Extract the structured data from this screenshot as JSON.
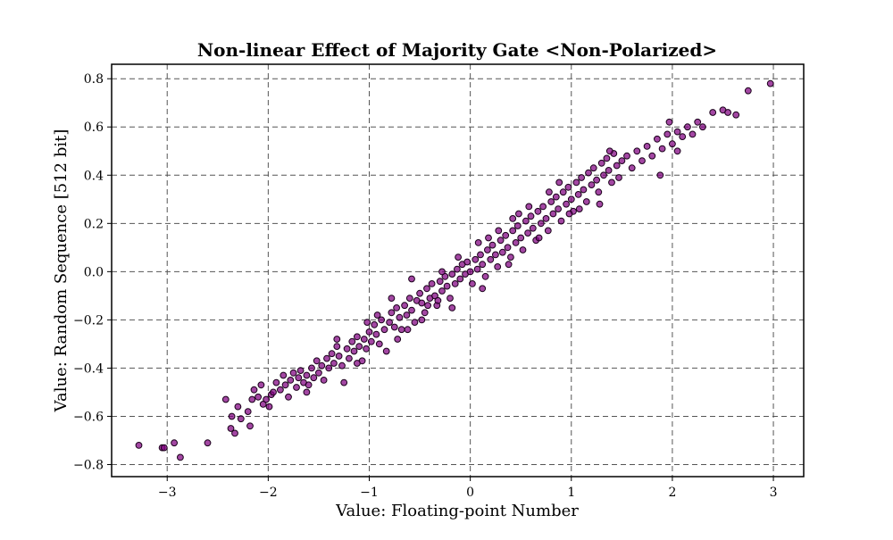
{
  "chart_data": {
    "type": "scatter",
    "title": "Non-linear Effect of Majority Gate <Non-Polarized>",
    "xlabel": "Value: Floating-point Number",
    "ylabel": "Value: Random Sequence [512 bit]",
    "xlim": [
      -3.55,
      3.3
    ],
    "ylim": [
      -0.85,
      0.86
    ],
    "xticks": [
      -3,
      -2,
      -1,
      0,
      1,
      2,
      3
    ],
    "yticks": [
      -0.8,
      -0.6,
      -0.4,
      -0.2,
      0.0,
      0.2,
      0.4,
      0.6,
      0.8
    ],
    "xtick_labels": [
      "−3",
      "−2",
      "−1",
      "0",
      "1",
      "2",
      "3"
    ],
    "ytick_labels": [
      "−0.8",
      "−0.6",
      "−0.4",
      "−0.2",
      "0.0",
      "0.2",
      "0.4",
      "0.6",
      "0.8"
    ],
    "grid": true,
    "marker_color": "#800080",
    "marker_edge_color": "#1a001a",
    "series": [
      {
        "points": [
          [
            -3.28,
            -0.72
          ],
          [
            -3.05,
            -0.73
          ],
          [
            -3.03,
            -0.73
          ],
          [
            -2.93,
            -0.71
          ],
          [
            -2.87,
            -0.77
          ],
          [
            -2.6,
            -0.71
          ],
          [
            -2.42,
            -0.53
          ],
          [
            -2.37,
            -0.65
          ],
          [
            -2.33,
            -0.67
          ],
          [
            -2.36,
            -0.6
          ],
          [
            -2.3,
            -0.56
          ],
          [
            -2.27,
            -0.61
          ],
          [
            -2.2,
            -0.58
          ],
          [
            -2.18,
            -0.64
          ],
          [
            -2.16,
            -0.53
          ],
          [
            -2.14,
            -0.49
          ],
          [
            -2.1,
            -0.52
          ],
          [
            -2.07,
            -0.47
          ],
          [
            -2.05,
            -0.55
          ],
          [
            -2.02,
            -0.53
          ],
          [
            -1.99,
            -0.56
          ],
          [
            -1.97,
            -0.51
          ],
          [
            -1.95,
            -0.5
          ],
          [
            -1.92,
            -0.46
          ],
          [
            -1.88,
            -0.49
          ],
          [
            -1.85,
            -0.43
          ],
          [
            -1.83,
            -0.47
          ],
          [
            -1.8,
            -0.52
          ],
          [
            -1.78,
            -0.45
          ],
          [
            -1.75,
            -0.42
          ],
          [
            -1.72,
            -0.48
          ],
          [
            -1.7,
            -0.44
          ],
          [
            -1.68,
            -0.41
          ],
          [
            -1.65,
            -0.46
          ],
          [
            -1.62,
            -0.43
          ],
          [
            -1.6,
            -0.47
          ],
          [
            -1.57,
            -0.4
          ],
          [
            -1.55,
            -0.44
          ],
          [
            -1.52,
            -0.37
          ],
          [
            -1.5,
            -0.42
          ],
          [
            -1.47,
            -0.39
          ],
          [
            -1.45,
            -0.45
          ],
          [
            -1.42,
            -0.36
          ],
          [
            -1.4,
            -0.4
          ],
          [
            -1.37,
            -0.34
          ],
          [
            -1.35,
            -0.38
          ],
          [
            -1.32,
            -0.31
          ],
          [
            -1.3,
            -0.35
          ],
          [
            -1.27,
            -0.39
          ],
          [
            -1.25,
            -0.46
          ],
          [
            -1.22,
            -0.32
          ],
          [
            -1.2,
            -0.36
          ],
          [
            -1.17,
            -0.29
          ],
          [
            -1.15,
            -0.33
          ],
          [
            -1.12,
            -0.27
          ],
          [
            -1.1,
            -0.31
          ],
          [
            -1.07,
            -0.37
          ],
          [
            -1.05,
            -0.28
          ],
          [
            -1.03,
            -0.32
          ],
          [
            -1.0,
            -0.25
          ],
          [
            -0.98,
            -0.29
          ],
          [
            -0.95,
            -0.22
          ],
          [
            -0.93,
            -0.26
          ],
          [
            -0.9,
            -0.3
          ],
          [
            -0.88,
            -0.2
          ],
          [
            -0.85,
            -0.24
          ],
          [
            -0.83,
            -0.33
          ],
          [
            -0.8,
            -0.21
          ],
          [
            -0.78,
            -0.17
          ],
          [
            -0.75,
            -0.23
          ],
          [
            -0.73,
            -0.15
          ],
          [
            -0.7,
            -0.19
          ],
          [
            -0.68,
            -0.24
          ],
          [
            -0.65,
            -0.14
          ],
          [
            -0.63,
            -0.18
          ],
          [
            -0.6,
            -0.11
          ],
          [
            -0.58,
            -0.16
          ],
          [
            -0.55,
            -0.21
          ],
          [
            -0.53,
            -0.12
          ],
          [
            -0.5,
            -0.09
          ],
          [
            -0.48,
            -0.13
          ],
          [
            -0.45,
            -0.17
          ],
          [
            -0.43,
            -0.07
          ],
          [
            -0.4,
            -0.11
          ],
          [
            -0.38,
            -0.05
          ],
          [
            -0.35,
            -0.1
          ],
          [
            -0.33,
            -0.14
          ],
          [
            -0.3,
            -0.04
          ],
          [
            -0.28,
            -0.08
          ],
          [
            -0.25,
            -0.02
          ],
          [
            -0.23,
            -0.06
          ],
          [
            -0.2,
            -0.11
          ],
          [
            -0.18,
            -0.01
          ],
          [
            -0.15,
            -0.05
          ],
          [
            -0.13,
            0.01
          ],
          [
            -0.1,
            -0.03
          ],
          [
            -0.08,
            0.03
          ],
          [
            -0.05,
            -0.01
          ],
          [
            -0.03,
            0.04
          ],
          [
            0.0,
            0.0
          ],
          [
            0.02,
            -0.05
          ],
          [
            0.05,
            0.05
          ],
          [
            0.07,
            0.01
          ],
          [
            0.1,
            0.07
          ],
          [
            0.12,
            0.03
          ],
          [
            0.15,
            -0.02
          ],
          [
            0.17,
            0.09
          ],
          [
            0.2,
            0.05
          ],
          [
            0.22,
            0.11
          ],
          [
            0.25,
            0.07
          ],
          [
            0.27,
            0.02
          ],
          [
            0.3,
            0.13
          ],
          [
            0.32,
            0.08
          ],
          [
            0.35,
            0.15
          ],
          [
            0.37,
            0.1
          ],
          [
            0.4,
            0.06
          ],
          [
            0.42,
            0.17
          ],
          [
            0.45,
            0.12
          ],
          [
            0.47,
            0.19
          ],
          [
            0.5,
            0.14
          ],
          [
            0.52,
            0.09
          ],
          [
            0.55,
            0.21
          ],
          [
            0.57,
            0.16
          ],
          [
            0.6,
            0.23
          ],
          [
            0.62,
            0.18
          ],
          [
            0.65,
            0.13
          ],
          [
            0.67,
            0.25
          ],
          [
            0.7,
            0.2
          ],
          [
            0.72,
            0.27
          ],
          [
            0.75,
            0.22
          ],
          [
            0.77,
            0.17
          ],
          [
            0.8,
            0.29
          ],
          [
            0.82,
            0.24
          ],
          [
            0.85,
            0.31
          ],
          [
            0.87,
            0.26
          ],
          [
            0.9,
            0.21
          ],
          [
            0.92,
            0.33
          ],
          [
            0.95,
            0.28
          ],
          [
            0.97,
            0.35
          ],
          [
            1.0,
            0.3
          ],
          [
            1.02,
            0.25
          ],
          [
            1.05,
            0.37
          ],
          [
            1.07,
            0.32
          ],
          [
            1.1,
            0.39
          ],
          [
            1.12,
            0.34
          ],
          [
            1.15,
            0.29
          ],
          [
            1.17,
            0.41
          ],
          [
            1.2,
            0.36
          ],
          [
            1.22,
            0.43
          ],
          [
            1.25,
            0.38
          ],
          [
            1.27,
            0.33
          ],
          [
            1.3,
            0.45
          ],
          [
            1.32,
            0.4
          ],
          [
            1.35,
            0.47
          ],
          [
            1.37,
            0.42
          ],
          [
            1.4,
            0.37
          ],
          [
            1.42,
            0.49
          ],
          [
            1.45,
            0.44
          ],
          [
            1.47,
            0.39
          ],
          [
            1.5,
            0.46
          ],
          [
            1.55,
            0.48
          ],
          [
            1.6,
            0.43
          ],
          [
            1.65,
            0.5
          ],
          [
            1.7,
            0.46
          ],
          [
            1.75,
            0.52
          ],
          [
            1.8,
            0.48
          ],
          [
            1.85,
            0.55
          ],
          [
            1.9,
            0.51
          ],
          [
            1.95,
            0.57
          ],
          [
            2.0,
            0.53
          ],
          [
            2.05,
            0.58
          ],
          [
            2.1,
            0.56
          ],
          [
            2.15,
            0.6
          ],
          [
            2.2,
            0.57
          ],
          [
            2.25,
            0.62
          ],
          [
            2.3,
            0.6
          ],
          [
            2.4,
            0.66
          ],
          [
            2.5,
            0.67
          ],
          [
            2.55,
            0.66
          ],
          [
            2.63,
            0.65
          ],
          [
            2.75,
            0.75
          ],
          [
            2.97,
            0.78
          ],
          [
            1.97,
            0.62
          ],
          [
            2.05,
            0.5
          ],
          [
            1.88,
            0.4
          ],
          [
            -1.12,
            -0.38
          ],
          [
            -0.92,
            -0.18
          ],
          [
            -0.62,
            -0.24
          ],
          [
            -0.32,
            -0.12
          ],
          [
            0.18,
            0.14
          ],
          [
            0.48,
            0.24
          ],
          [
            0.78,
            0.33
          ],
          [
            1.08,
            0.26
          ],
          [
            1.38,
            0.5
          ],
          [
            -0.12,
            0.06
          ],
          [
            -0.42,
            -0.14
          ],
          [
            -0.72,
            -0.28
          ],
          [
            -1.02,
            -0.21
          ],
          [
            -1.32,
            -0.28
          ],
          [
            -1.62,
            -0.5
          ],
          [
            0.08,
            0.12
          ],
          [
            0.38,
            0.03
          ],
          [
            0.68,
            0.14
          ],
          [
            0.98,
            0.24
          ],
          [
            1.28,
            0.28
          ],
          [
            -0.18,
            -0.15
          ],
          [
            -0.48,
            -0.2
          ],
          [
            -0.78,
            -0.11
          ],
          [
            0.28,
            0.17
          ],
          [
            0.58,
            0.27
          ],
          [
            0.88,
            0.37
          ],
          [
            -0.58,
            -0.03
          ],
          [
            -0.28,
            0.0
          ],
          [
            0.12,
            -0.07
          ],
          [
            0.42,
            0.22
          ]
        ]
      }
    ]
  }
}
